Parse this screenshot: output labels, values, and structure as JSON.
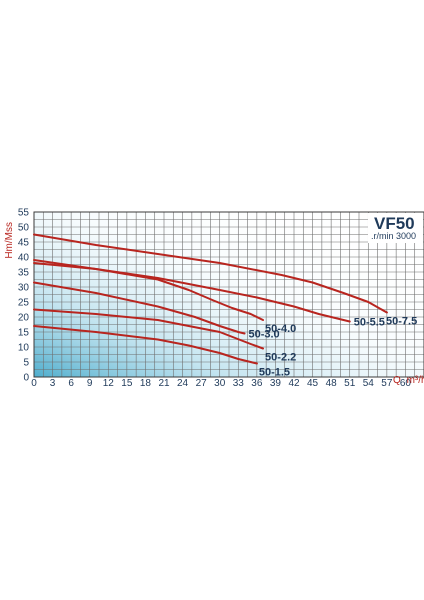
{
  "chart_data": {
    "type": "line",
    "title": "VF50",
    "subtitle": ".r/min 3000",
    "ylabel": "Hm/Mss",
    "xlabel_prefix": "Q",
    "xlabel_unit": "m³/h",
    "xlim": [
      0,
      63
    ],
    "ylim": [
      0,
      55
    ],
    "x_ticks": [
      0,
      3,
      6,
      9,
      12,
      15,
      18,
      21,
      24,
      27,
      30,
      33,
      36,
      39,
      42,
      45,
      48,
      51,
      54,
      57,
      60
    ],
    "y_ticks": [
      0,
      5,
      10,
      15,
      20,
      25,
      30,
      35,
      40,
      45,
      50,
      55
    ],
    "grid": true,
    "curve_color": "#b8251f",
    "series": [
      {
        "name": "50-7.5",
        "x": [
          0,
          10,
          20,
          30,
          40,
          45,
          50,
          54,
          57
        ],
        "y": [
          47.5,
          44,
          41,
          38,
          34,
          31.5,
          28,
          25,
          21.5
        ]
      },
      {
        "name": "50-5.5",
        "x": [
          0,
          10,
          20,
          30,
          36,
          42,
          46,
          49,
          51
        ],
        "y": [
          39,
          36,
          33,
          29,
          26.5,
          23.5,
          21,
          19.5,
          18.5
        ]
      },
      {
        "name": "50-4.0",
        "x": [
          0,
          10,
          20,
          25,
          29,
          32,
          35,
          37
        ],
        "y": [
          38,
          36,
          32.5,
          29,
          25.5,
          23,
          21,
          19
        ]
      },
      {
        "name": "50-3.0",
        "x": [
          0,
          10,
          20,
          26,
          30,
          33,
          34
        ],
        "y": [
          31.5,
          28,
          23.5,
          20,
          17,
          15,
          14.5
        ]
      },
      {
        "name": "50-2.2",
        "x": [
          0,
          10,
          20,
          30,
          35,
          37
        ],
        "y": [
          22.5,
          21,
          19,
          15,
          11,
          9.5
        ]
      },
      {
        "name": "50-1.5",
        "x": [
          0,
          10,
          20,
          25,
          30,
          33,
          36
        ],
        "y": [
          17,
          15,
          12.5,
          10.5,
          8,
          6,
          4.5
        ]
      }
    ]
  }
}
